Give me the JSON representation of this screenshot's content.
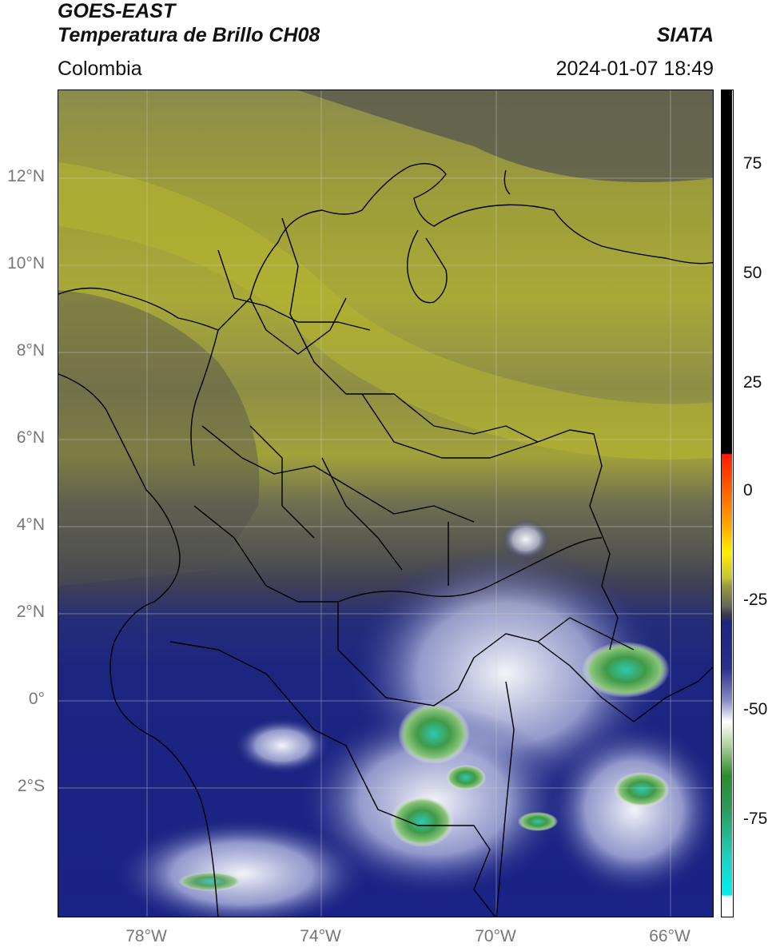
{
  "header": {
    "satellite": "GOES-EAST",
    "product": "Temperatura de Brillo CH08",
    "region": "Colombia",
    "organization": "SIATA",
    "timestamp": "2024-01-07 18:49"
  },
  "map": {
    "lat_ticks": [
      "12°N",
      "10°N",
      "8°N",
      "6°N",
      "4°N",
      "2°N",
      "0°",
      "2°S"
    ],
    "lon_ticks": [
      "78°W",
      "74°W",
      "70°W",
      "66°W"
    ]
  },
  "colorbar": {
    "ticks": [
      "75",
      "50",
      "25",
      "0",
      "-25",
      "-50",
      "-75"
    ],
    "colors": {
      "warm_black": "#000000",
      "red": "#ff2200",
      "orange": "#ff9900",
      "yellow": "#ffee00",
      "olive": "#b8b838",
      "gray": "#5a5a50",
      "navy": "#1c2580",
      "white": "#ffffff",
      "green": "#2e8a2e",
      "cyan": "#20e0e0"
    }
  }
}
